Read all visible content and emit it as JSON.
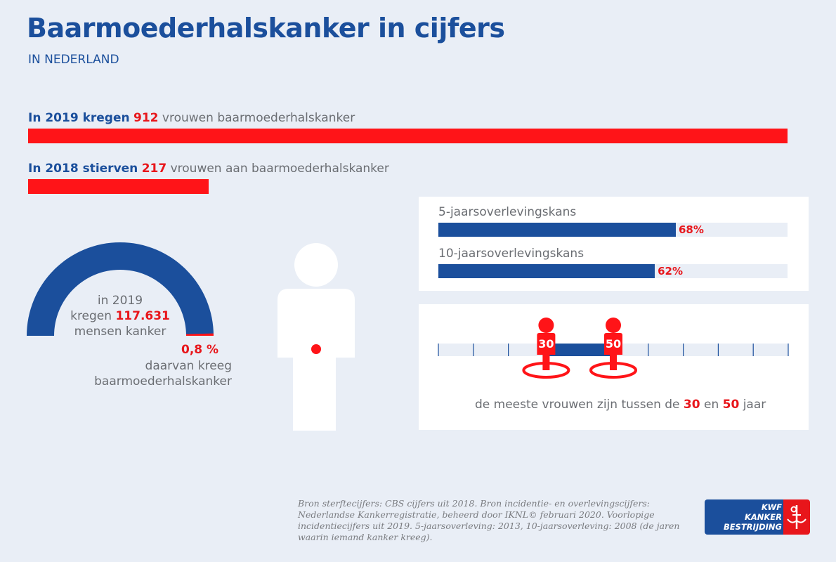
{
  "header": {
    "title": "Baarmoederhalskanker in cijfers",
    "subtitle": "IN NEDERLAND"
  },
  "incidence": {
    "prefix": "In 2019 kregen",
    "value": "912",
    "suffix": "vrouwen baarmoederhalskanker"
  },
  "mortality": {
    "prefix": "In 2018 stierven",
    "value": "217",
    "suffix": "vrouwen aan baarmoederhalskanker"
  },
  "gauge": {
    "line1": "in 2019",
    "line2_prefix": "kregen",
    "total": "117.631",
    "line3": "mensen kanker",
    "share": "0,8 %",
    "share_fraction": 0.008,
    "share_line1": "daarvan kreeg",
    "share_line2": "baarmoederhalskanker"
  },
  "survival": [
    {
      "label": "5-jaarsoverlevingskans",
      "value": 68,
      "value_label": "68%"
    },
    {
      "label": "10-jaarsoverlevingskans",
      "value": 62,
      "value_label": "62%"
    }
  ],
  "age": {
    "from": "30",
    "to": "50",
    "from_value": 30,
    "to_value": 50,
    "scale_max": 100,
    "text_prefix": "de meeste vrouwen zijn tussen de",
    "text_mid": "en",
    "text_suffix": "jaar"
  },
  "footnote": "Bron sterftecijfers: CBS cijfers uit 2018. Bron incidentie- en overlevingscijfers: Nederlandse Kankerregistratie, beheerd door IKNL© februari 2020. Voorlopige incidentiecijfers uit 2019. 5-jaarsoverleving: 2013, 10-jaarsoverleving: 2008 (de jaren waarin iemand kanker kreeg).",
  "logo": {
    "line1": "KWF",
    "line2": "KANKER",
    "line3": "BESTRIJDING"
  },
  "colors": {
    "blue": "#1b4f9c",
    "red": "#e8161b",
    "bar_red": "#ff1418",
    "background": "#e9eef6"
  }
}
